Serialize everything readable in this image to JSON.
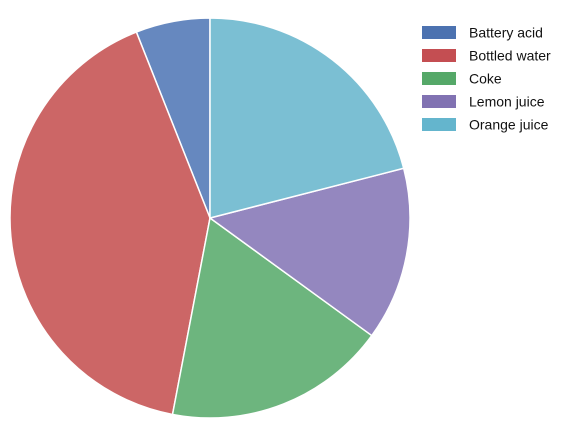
{
  "chart_data": {
    "type": "pie",
    "legend_position": "top-right",
    "slices": [
      {
        "label": "Battery acid",
        "value": 6,
        "color": "#6688bf"
      },
      {
        "label": "Bottled water",
        "value": 41,
        "color": "#cc6666"
      },
      {
        "label": "Coke",
        "value": 18,
        "color": "#6db57e"
      },
      {
        "label": "Lemon juice",
        "value": 14,
        "color": "#9487bf"
      },
      {
        "label": "Orange juice",
        "value": 21,
        "color": "#7bbfd3"
      }
    ],
    "legend_colors": [
      "#4c72b0",
      "#c44e52",
      "#55a868",
      "#8172b2",
      "#64b5cd"
    ]
  }
}
